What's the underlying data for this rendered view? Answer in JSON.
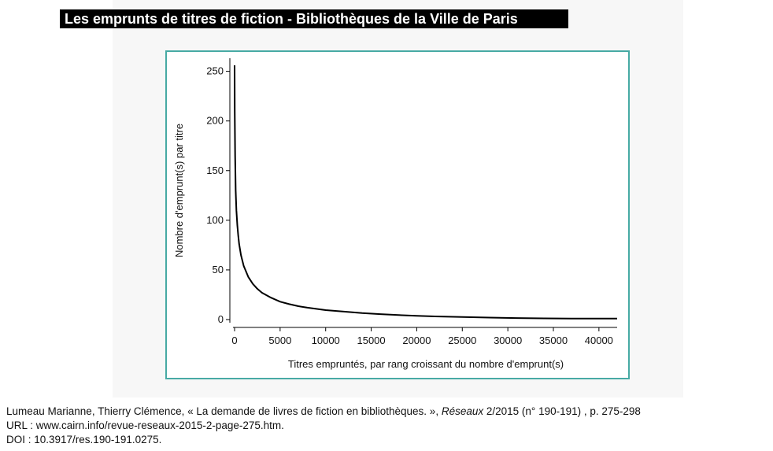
{
  "header": {
    "title": "Les emprunts de titres de fiction - Bibliothèques de la Ville de Paris"
  },
  "chart_data": {
    "type": "line",
    "title": "",
    "xlabel": "Titres empruntés, par rang croissant du nombre d'emprunt(s)",
    "ylabel": "Nombre d'emprunt(s) par titre",
    "xlim": [
      0,
      42000
    ],
    "ylim": [
      0,
      260
    ],
    "xticks": [
      "0",
      "5000",
      "10000",
      "15000",
      "20000",
      "25000",
      "30000",
      "35000",
      "40000"
    ],
    "yticks": [
      "0",
      "50",
      "100",
      "150",
      "200",
      "250"
    ],
    "grid": false,
    "series": [
      {
        "x": [
          0,
          20,
          60,
          120,
          200,
          300,
          400,
          500,
          700,
          1000,
          1500,
          2000,
          2500,
          3000,
          4000,
          5000,
          6000,
          7000,
          8000,
          10000,
          12000,
          14000,
          16000,
          18000,
          20000,
          22000,
          25000,
          28000,
          31000,
          34000,
          37000,
          40000,
          42000
        ],
        "y": [
          256,
          210,
          165,
          130,
          110,
          95,
          85,
          76,
          65,
          54,
          43,
          36,
          31,
          27,
          22,
          18,
          15.5,
          13.5,
          12,
          9.5,
          8,
          6.5,
          5.5,
          4.5,
          3.8,
          3.2,
          2.5,
          2,
          1.5,
          1.2,
          1,
          1,
          1
        ],
        "color": "#000000"
      }
    ]
  },
  "citation": {
    "line1_pre": "Lumeau Marianne, Thierry Clémence, « La demande de livres de fiction en bibliothèques. », ",
    "line1_journal": "Réseaux",
    "line1_post": " 2/2015 (n° 190-191) , p. 275-298",
    "line2": "URL : www.cairn.info/revue-reseaux-2015-2-page-275.htm.",
    "line3": "DOI : 10.3917/res.190-191.0275."
  }
}
